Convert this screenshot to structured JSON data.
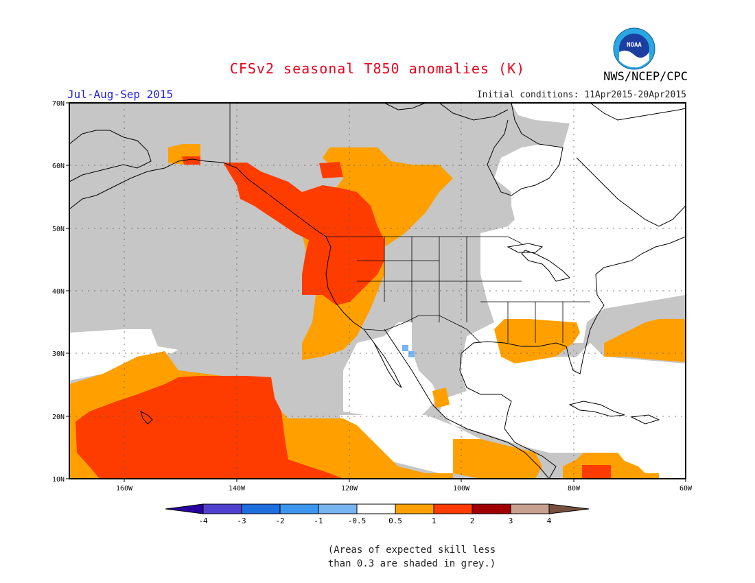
{
  "header": {
    "title": "CFSv2 seasonal T850 anomalies (K)",
    "season": "Jul-Aug-Sep 2015",
    "initial_conditions": "Initial conditions: 11Apr2015-20Apr2015",
    "agency": "NWS/NCEP/CPC",
    "logo_text": "NOAA"
  },
  "map": {
    "lat_labels": [
      "70N",
      "60N",
      "50N",
      "40N",
      "30N",
      "20N",
      "10N"
    ],
    "lon_labels": [
      "160W",
      "140W",
      "120W",
      "100W",
      "80W",
      "60W"
    ],
    "colors": {
      "grey_low_skill": "#c6c6c6",
      "orange_0_5_to_1": "#ffa000",
      "red_1_to_2": "#ff3c00",
      "light_blue": "#78b4f0",
      "coastline": "#000000"
    }
  },
  "colorbar": {
    "tick_labels": [
      "-4",
      "-3",
      "-2",
      "-1",
      "-0.5",
      "0.5",
      "1",
      "2",
      "3",
      "4"
    ],
    "colors": [
      "#2800a0",
      "#5040d0",
      "#1e6ee0",
      "#3c96f0",
      "#78b4f0",
      "#ffffff",
      "#ffa000",
      "#ff3c00",
      "#a00000",
      "#c8a090",
      "#785040"
    ]
  },
  "footnote": {
    "line1": "(Areas of expected skill less",
    "line2": "than 0.3 are shaded in grey.)"
  }
}
